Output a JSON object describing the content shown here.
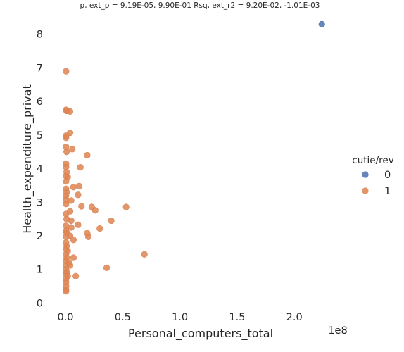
{
  "chart_data": {
    "type": "scatter",
    "title": "p, ext_p = 9.19E-05, 9.90E-01 Rsq, ext_r2 = 9.20E-02, -1.01E-03",
    "xlabel": "Personal_computers_total",
    "ylabel": "Health_expenditure_privat",
    "x_offset_label": "1e8",
    "x_ticks": [
      {
        "value": 0.0,
        "label": "0.0"
      },
      {
        "value": 0.5,
        "label": "0.5"
      },
      {
        "value": 1.0,
        "label": "1.0"
      },
      {
        "value": 1.5,
        "label": "1.5"
      },
      {
        "value": 2.0,
        "label": "2.0"
      }
    ],
    "y_ticks": [
      {
        "value": 0,
        "label": "0"
      },
      {
        "value": 1,
        "label": "1"
      },
      {
        "value": 2,
        "label": "2"
      },
      {
        "value": 3,
        "label": "3"
      },
      {
        "value": 4,
        "label": "4"
      },
      {
        "value": 5,
        "label": "5"
      },
      {
        "value": 6,
        "label": "6"
      },
      {
        "value": 7,
        "label": "7"
      },
      {
        "value": 8,
        "label": "8"
      }
    ],
    "xlim": [
      -0.08,
      2.38
    ],
    "ylim": [
      -0.2,
      8.6
    ],
    "grid": false,
    "legend": {
      "title": "cutie/rev",
      "placement": "right",
      "entries": [
        {
          "label": "0",
          "color": "#4c72b0"
        },
        {
          "label": "1",
          "color": "#dd8452"
        }
      ]
    },
    "series": [
      {
        "name": "0",
        "color": "#4c72b0",
        "points": [
          [
            2.24,
            8.3
          ]
        ]
      },
      {
        "name": "1",
        "color": "#dd8452",
        "points": [
          [
            0.005,
            6.9
          ],
          [
            0.005,
            5.75
          ],
          [
            0.01,
            5.72
          ],
          [
            0.04,
            5.7
          ],
          [
            0.04,
            5.07
          ],
          [
            0.005,
            4.98
          ],
          [
            0.005,
            4.92
          ],
          [
            0.06,
            4.58
          ],
          [
            0.005,
            4.65
          ],
          [
            0.01,
            4.5
          ],
          [
            0.005,
            4.15
          ],
          [
            0.005,
            4.05
          ],
          [
            0.19,
            4.4
          ],
          [
            0.13,
            4.04
          ],
          [
            0.01,
            3.9
          ],
          [
            0.005,
            3.78
          ],
          [
            0.02,
            3.75
          ],
          [
            0.005,
            3.62
          ],
          [
            0.12,
            3.48
          ],
          [
            0.07,
            3.45
          ],
          [
            0.005,
            3.4
          ],
          [
            0.01,
            3.3
          ],
          [
            0.005,
            3.2
          ],
          [
            0.11,
            3.22
          ],
          [
            0.005,
            3.08
          ],
          [
            0.05,
            3.05
          ],
          [
            0.005,
            2.95
          ],
          [
            0.14,
            2.88
          ],
          [
            0.23,
            2.86
          ],
          [
            0.26,
            2.76
          ],
          [
            0.53,
            2.86
          ],
          [
            0.04,
            2.73
          ],
          [
            0.005,
            2.65
          ],
          [
            0.01,
            2.5
          ],
          [
            0.05,
            2.45
          ],
          [
            0.4,
            2.45
          ],
          [
            0.11,
            2.33
          ],
          [
            0.005,
            2.3
          ],
          [
            0.05,
            2.25
          ],
          [
            0.3,
            2.22
          ],
          [
            0.005,
            2.15
          ],
          [
            0.01,
            2.1
          ],
          [
            0.19,
            2.08
          ],
          [
            0.04,
            2.0
          ],
          [
            0.005,
            1.97
          ],
          [
            0.2,
            1.97
          ],
          [
            0.07,
            1.88
          ],
          [
            0.005,
            1.8
          ],
          [
            0.01,
            1.7
          ],
          [
            0.005,
            1.6
          ],
          [
            0.02,
            1.55
          ],
          [
            0.005,
            1.45
          ],
          [
            0.69,
            1.45
          ],
          [
            0.01,
            1.35
          ],
          [
            0.07,
            1.35
          ],
          [
            0.005,
            1.25
          ],
          [
            0.03,
            1.2
          ],
          [
            0.005,
            1.12
          ],
          [
            0.04,
            1.12
          ],
          [
            0.36,
            1.05
          ],
          [
            0.005,
            1.0
          ],
          [
            0.01,
            0.92
          ],
          [
            0.005,
            0.85
          ],
          [
            0.02,
            0.8
          ],
          [
            0.09,
            0.8
          ],
          [
            0.005,
            0.72
          ],
          [
            0.005,
            0.62
          ],
          [
            0.005,
            0.5
          ],
          [
            0.005,
            0.4
          ],
          [
            0.005,
            0.35
          ]
        ]
      }
    ]
  }
}
